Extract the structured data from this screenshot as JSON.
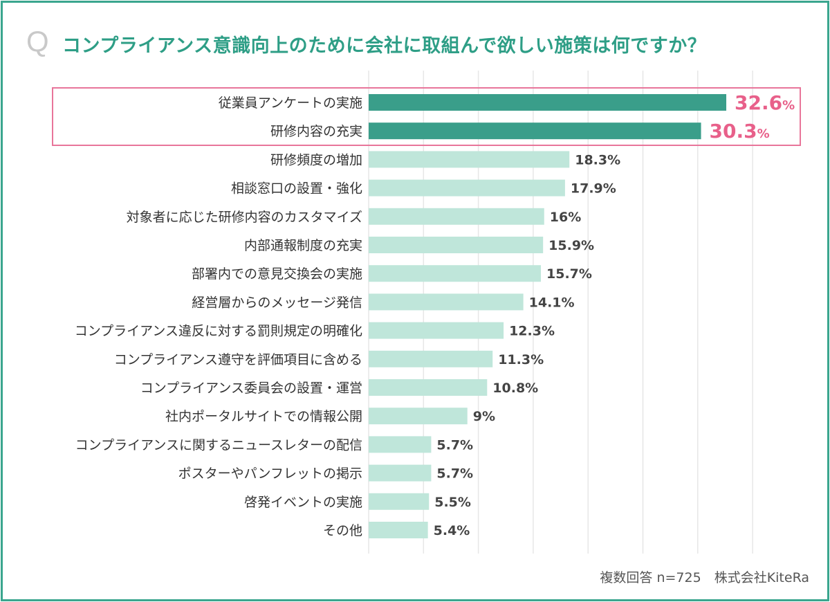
{
  "title_prefix": "Q",
  "title": "コンプライアンス意識向上のために会社に取組んで欲しい施策は何ですか？",
  "footnote": "複数回答 n=725　株式会社KiteRa",
  "colors": {
    "frame": "#3aa58e",
    "title": "#2e9e86",
    "highlight_bar": "#3a9e8a",
    "bar": "#bfe6da",
    "highlight_box": "#e8759a",
    "highlight_value": "#e8608a"
  },
  "chart_data": {
    "type": "bar",
    "orientation": "horizontal",
    "unit": "%",
    "xlim": [
      0,
      35
    ],
    "grid": true,
    "highlighted": [
      0,
      1
    ],
    "categories": [
      "従業員アンケートの実施",
      "研修内容の充実",
      "研修頻度の増加",
      "相談窓口の設置・強化",
      "対象者に応じた研修内容のカスタマイズ",
      "内部通報制度の充実",
      "部署内での意見交換会の実施",
      "経営層からのメッセージ発信",
      "コンプライアンス違反に対する罰則規定の明確化",
      "コンプライアンス遵守を評価項目に含める",
      "コンプライアンス委員会の設置・運営",
      "社内ポータルサイトでの情報公開",
      "コンプライアンスに関するニュースレターの配信",
      "ポスターやパンフレットの掲示",
      "啓発イベントの実施",
      "その他"
    ],
    "values": [
      32.6,
      30.3,
      18.3,
      17.9,
      16,
      15.9,
      15.7,
      14.1,
      12.3,
      11.3,
      10.8,
      9,
      5.7,
      5.7,
      5.5,
      5.4
    ],
    "labels": [
      "32.6",
      "30.3",
      "18.3%",
      "17.9%",
      "16%",
      "15.9%",
      "15.7%",
      "14.1%",
      "12.3%",
      "11.3%",
      "10.8%",
      "9%",
      "5.7%",
      "5.7%",
      "5.5%",
      "5.4%"
    ]
  }
}
